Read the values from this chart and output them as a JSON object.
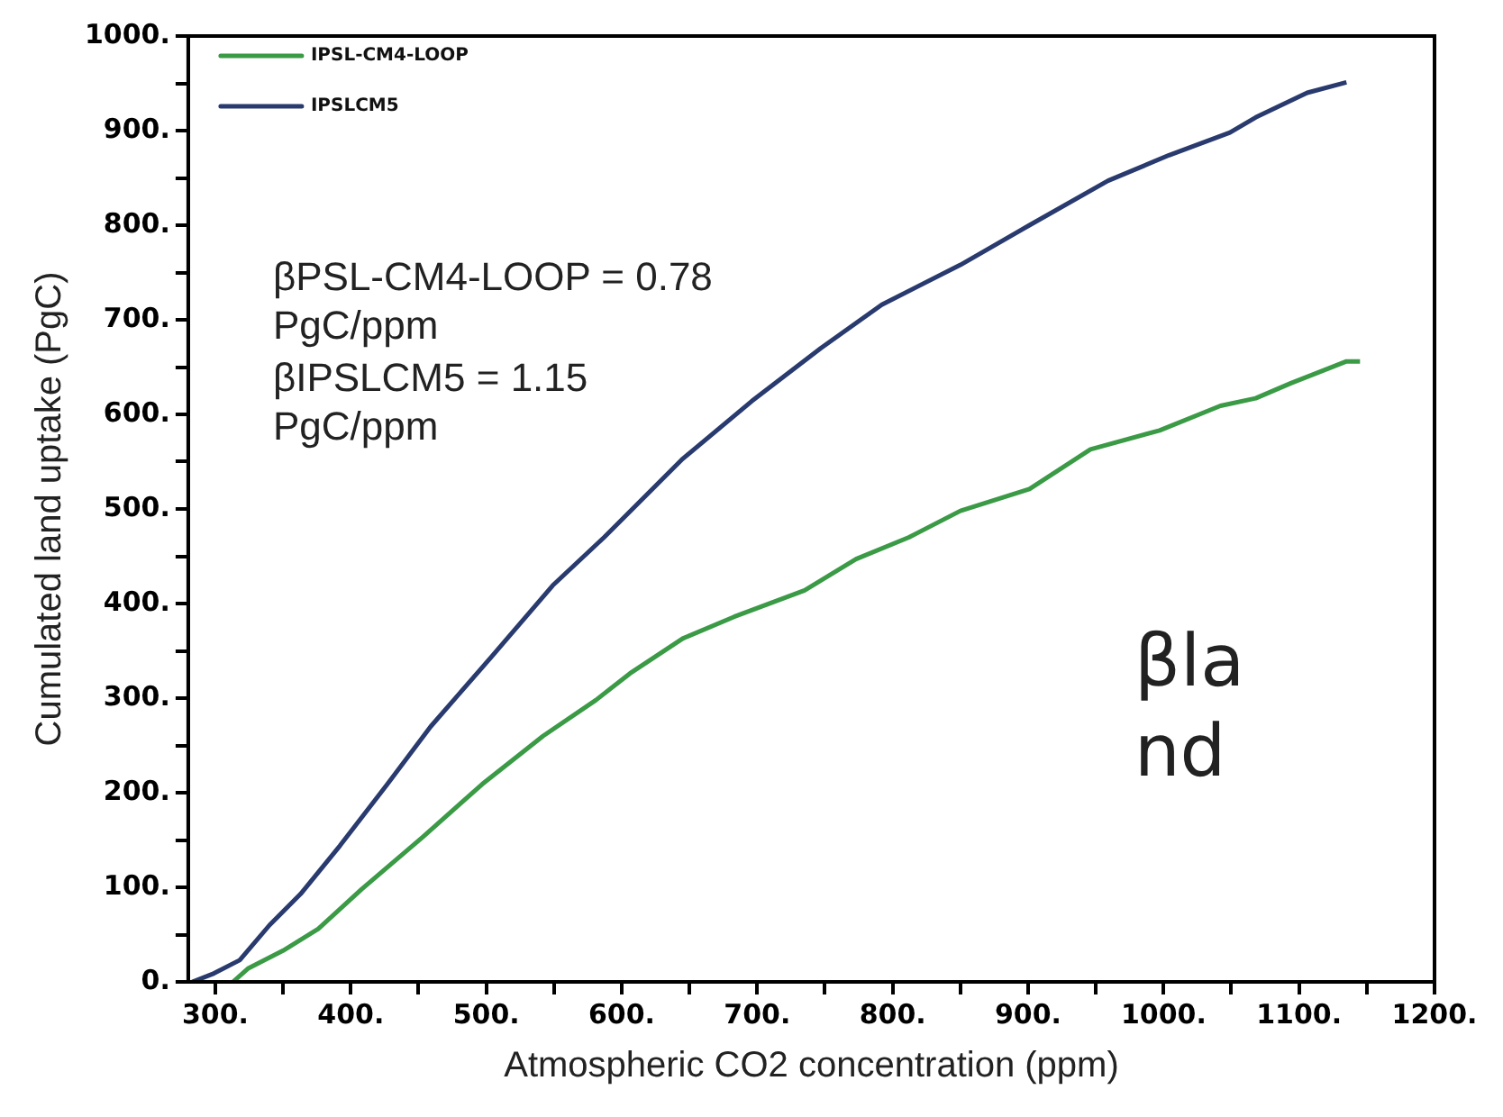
{
  "chart_data": {
    "type": "line",
    "xlabel": "Atmospheric CO2 concentration (ppm)",
    "ylabel": "Cumulated land uptake (PgC)",
    "xlim": [
      280,
      1200
    ],
    "xticks": [
      {
        "value": 300,
        "label": "300."
      },
      {
        "value": 350,
        "label": null
      },
      {
        "value": 400,
        "label": "400."
      },
      {
        "value": 450,
        "label": null
      },
      {
        "value": 500,
        "label": "500."
      },
      {
        "value": 550,
        "label": null
      },
      {
        "value": 600,
        "label": "600."
      },
      {
        "value": 650,
        "label": null
      },
      {
        "value": 700,
        "label": "700."
      },
      {
        "value": 750,
        "label": null
      },
      {
        "value": 800,
        "label": "800."
      },
      {
        "value": 850,
        "label": null
      },
      {
        "value": 900,
        "label": "900."
      },
      {
        "value": 950,
        "label": null
      },
      {
        "value": 1000,
        "label": "1000."
      },
      {
        "value": 1050,
        "label": null
      },
      {
        "value": 1100,
        "label": "1100."
      },
      {
        "value": 1150,
        "label": null
      },
      {
        "value": 1200,
        "label": "1200."
      }
    ],
    "ylim": [
      0,
      1000
    ],
    "yticks": [
      {
        "value": 0,
        "label": "0."
      },
      {
        "value": 50,
        "label": null
      },
      {
        "value": 100,
        "label": "100."
      },
      {
        "value": 150,
        "label": null
      },
      {
        "value": 200,
        "label": "200."
      },
      {
        "value": 250,
        "label": null
      },
      {
        "value": 300,
        "label": "300."
      },
      {
        "value": 350,
        "label": null
      },
      {
        "value": 400,
        "label": "400."
      },
      {
        "value": 450,
        "label": null
      },
      {
        "value": 500,
        "label": "500."
      },
      {
        "value": 550,
        "label": null
      },
      {
        "value": 600,
        "label": "600."
      },
      {
        "value": 650,
        "label": null
      },
      {
        "value": 700,
        "label": "700."
      },
      {
        "value": 750,
        "label": null
      },
      {
        "value": 800,
        "label": "800."
      },
      {
        "value": 850,
        "label": null
      },
      {
        "value": 900,
        "label": "900."
      },
      {
        "value": 950,
        "label": null
      },
      {
        "value": 1000,
        "label": "1000."
      }
    ],
    "grid": false,
    "legend": "top left",
    "marker": "none",
    "line_style": "solid",
    "annotations": [
      "βPSL-CM4-LOOP = 0.78 PgC/ppm",
      "βIPSLCM5 = 1.15 PgC/ppm",
      "βland"
    ],
    "series": [
      {
        "name": "IPSL-CM4-LOOP",
        "color": "#3a9a45",
        "x": [
          313,
          324,
          350,
          376,
          408,
          453,
          497,
          542,
          581,
          606,
          645,
          683,
          735,
          773,
          812,
          850,
          901,
          946,
          997,
          1042,
          1068,
          1094,
          1119,
          1135,
          1145
        ],
        "values": [
          0,
          14,
          33,
          56,
          98,
          153,
          209,
          260,
          298,
          326,
          363,
          386,
          414,
          447,
          470,
          498,
          521,
          563,
          583,
          609,
          617,
          633,
          647,
          656,
          656
        ]
      },
      {
        "name": "IPSLCM5",
        "color": "#283a6e",
        "x": [
          283,
          299,
          318,
          340,
          363,
          392,
          427,
          459,
          504,
          549,
          587,
          645,
          696,
          747,
          792,
          850,
          901,
          959,
          1004,
          1049,
          1068,
          1106,
          1135
        ],
        "values": [
          0,
          9,
          23,
          60,
          93,
          144,
          209,
          270,
          344,
          419,
          470,
          553,
          614,
          670,
          716,
          758,
          800,
          847,
          874,
          898,
          914,
          940,
          951
        ]
      }
    ]
  }
}
